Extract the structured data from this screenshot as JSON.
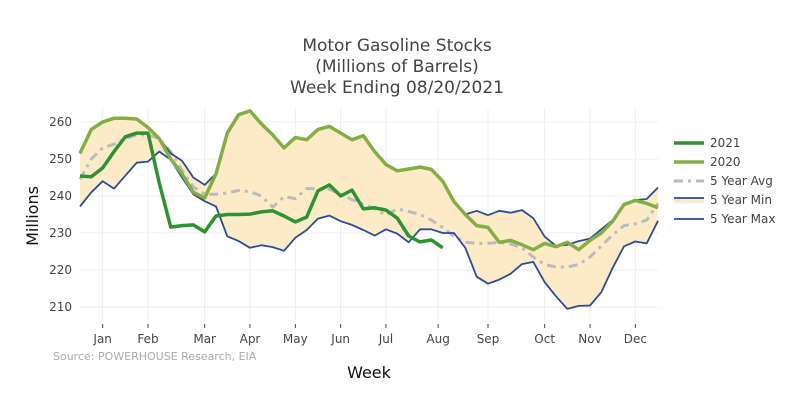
{
  "chart_data": {
    "type": "line",
    "title": [
      "Motor Gasoline Stocks",
      "(Millions of Barrels)",
      "Week Ending 08/20/2021"
    ],
    "xlabel": "Week",
    "ylabel": "Millions",
    "source": "Source: POWERHOUSE Research, EIA",
    "weeks": 52,
    "ylim": [
      206,
      264
    ],
    "yticks": [
      210,
      220,
      230,
      240,
      250,
      260
    ],
    "xticks": [
      {
        "label": "Jan",
        "week": 3
      },
      {
        "label": "Feb",
        "week": 7
      },
      {
        "label": "Mar",
        "week": 12
      },
      {
        "label": "Apr",
        "week": 16
      },
      {
        "label": "May",
        "week": 20
      },
      {
        "label": "Jun",
        "week": 24
      },
      {
        "label": "Jul",
        "week": 28
      },
      {
        "label": "Aug",
        "week": 32.6
      },
      {
        "label": "Sep",
        "week": 37
      },
      {
        "label": "Oct",
        "week": 42
      },
      {
        "label": "Nov",
        "week": 46
      },
      {
        "label": "Dec",
        "week": 50
      }
    ],
    "grid": true,
    "legend_position": "right",
    "series": [
      {
        "name": "2021",
        "color": "#2e9232",
        "style": "solid-thick",
        "values": [
          245.4,
          245.2,
          247.6,
          252,
          256,
          257,
          257,
          243.5,
          231.6,
          232,
          232.2,
          230.3,
          234.6,
          235,
          235,
          235.1,
          235.7,
          236,
          234.6,
          233,
          234.3,
          241.4,
          243,
          240,
          241.6,
          236.5,
          236.8,
          236.2,
          234,
          229.2,
          227.6,
          228.1,
          226
        ]
      },
      {
        "name": "2020",
        "color": "#84ae45",
        "style": "solid-thick",
        "values": [
          251.5,
          258,
          260,
          261,
          261,
          260.8,
          258.5,
          255.5,
          250,
          246,
          241,
          239.5,
          246,
          257,
          262,
          263,
          259.5,
          256.5,
          253,
          255.8,
          255.2,
          258,
          258.8,
          257,
          255.2,
          256.3,
          252,
          248.5,
          246.8,
          247.3,
          247.8,
          247.2,
          244,
          238.5,
          235,
          232,
          231.5,
          227.5,
          228,
          226.8,
          225.5,
          227.2,
          226.3,
          227.5,
          225.5,
          228,
          230,
          233.2,
          237.7,
          238.8,
          238,
          236.8
        ]
      },
      {
        "name": "5 Year Avg",
        "color": "#bbbbbb",
        "style": "dashdot",
        "values": [
          244.5,
          250,
          253,
          254,
          255.5,
          256.5,
          256.5,
          255.5,
          252,
          247,
          242.5,
          240.5,
          240.5,
          240.8,
          241.5,
          241.2,
          240,
          237,
          239.8,
          239.3,
          242,
          242,
          241.8,
          240.5,
          239,
          237.8,
          236.5,
          234.8,
          236.5,
          235.8,
          235,
          233.5,
          231.5,
          229.2,
          227.5,
          227.2,
          227.2,
          227.5,
          227,
          226,
          223.5,
          221.5,
          220.8,
          220.8,
          221.5,
          223.5,
          226.5,
          229.5,
          232,
          232.5,
          233.5,
          238
        ]
      },
      {
        "name": "5 Year Min",
        "color": "#2a4d93",
        "fill": "#fdebc8",
        "style": "solid",
        "values": [
          237.2,
          241,
          244,
          242,
          245.5,
          249,
          249.3,
          252,
          249.8,
          245,
          240.5,
          238.6,
          237.2,
          229.1,
          227.8,
          226,
          226.7,
          226.2,
          225.2,
          228.7,
          230.8,
          233.9,
          234.7,
          233.2,
          232.2,
          230.8,
          229.3,
          231,
          229.8,
          227.5,
          231,
          231,
          230,
          230,
          226,
          218.2,
          216.3,
          217.4,
          219,
          221.6,
          222.2,
          216.7,
          212.9,
          209.5,
          210.3,
          210.4,
          214,
          220.6,
          226.4,
          227.7,
          227.2,
          233.3
        ]
      },
      {
        "name": "5 Year Max",
        "color": "#2a4d93",
        "style": "solid",
        "values": [
          251.5,
          258,
          260,
          261,
          261,
          260.8,
          258.5,
          255.5,
          251.5,
          249.5,
          245,
          243,
          246,
          257,
          262,
          263,
          259.5,
          256.5,
          253,
          255.8,
          255.2,
          258,
          258.8,
          257,
          255.2,
          256.3,
          252,
          248.5,
          246.8,
          247.3,
          247.8,
          247.2,
          244,
          238.5,
          235,
          236,
          234.8,
          236,
          235.5,
          236.2,
          234,
          229,
          226.5,
          226.8,
          227.8,
          228.5,
          231,
          233.5,
          237.7,
          238.9,
          239.2,
          242.3
        ]
      }
    ]
  }
}
